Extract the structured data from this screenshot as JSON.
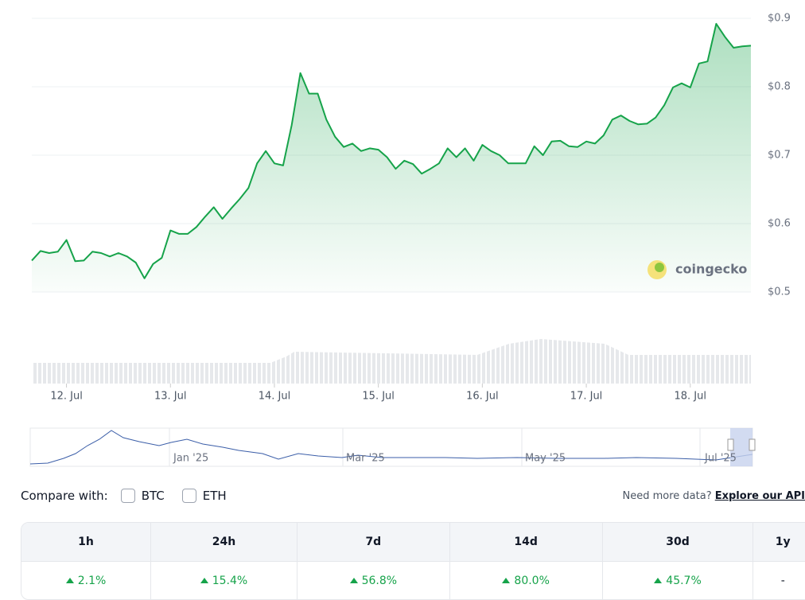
{
  "chart_data": {
    "type": "line",
    "color": "#16a34a",
    "values": [
      0.546,
      0.56,
      0.557,
      0.559,
      0.576,
      0.545,
      0.546,
      0.559,
      0.557,
      0.552,
      0.557,
      0.552,
      0.543,
      0.52,
      0.541,
      0.55,
      0.59,
      0.585,
      0.585,
      0.595,
      0.61,
      0.624,
      0.607,
      0.622,
      0.636,
      0.652,
      0.688,
      0.706,
      0.688,
      0.685,
      0.744,
      0.82,
      0.79,
      0.79,
      0.752,
      0.727,
      0.712,
      0.717,
      0.706,
      0.71,
      0.708,
      0.697,
      0.68,
      0.692,
      0.687,
      0.673,
      0.68,
      0.688,
      0.71,
      0.697,
      0.71,
      0.692,
      0.715,
      0.706,
      0.7,
      0.688,
      0.688,
      0.688,
      0.713,
      0.7,
      0.72,
      0.721,
      0.713,
      0.712,
      0.72,
      0.717,
      0.729,
      0.752,
      0.758,
      0.75,
      0.745,
      0.746,
      0.755,
      0.773,
      0.799,
      0.805,
      0.799,
      0.834,
      0.837,
      0.892,
      0.873,
      0.857,
      0.859,
      0.86
    ],
    "ylim": [
      0.5,
      0.9
    ],
    "yticks": [
      {
        "value": 0.5,
        "label": "$0.5"
      },
      {
        "value": 0.6,
        "label": "$0.6"
      },
      {
        "value": 0.7,
        "label": "$0.7"
      },
      {
        "value": 0.8,
        "label": "$0.8"
      },
      {
        "value": 0.9,
        "label": "$0.9"
      }
    ],
    "xlim": [
      0,
      83
    ],
    "xticks": [
      {
        "value": 4,
        "label": "12. Jul"
      },
      {
        "value": 16,
        "label": "13. Jul"
      },
      {
        "value": 28,
        "label": "14. Jul"
      },
      {
        "value": 40,
        "label": "15. Jul"
      },
      {
        "value": 52,
        "label": "16. Jul"
      },
      {
        "value": 64,
        "label": "17. Jul"
      },
      {
        "value": 76,
        "label": "18. Jul"
      }
    ],
    "grid": true,
    "watermark": "coingecko"
  },
  "navigator": {
    "labels": [
      "Jan '25",
      "Mar '25",
      "May '25",
      "Jul '25"
    ]
  },
  "compare": {
    "label": "Compare with:",
    "options": [
      "BTC",
      "ETH"
    ],
    "more": "Need more data?",
    "link": "Explore our API"
  },
  "table": {
    "headers": [
      "1h",
      "24h",
      "7d",
      "14d",
      "30d",
      "1y"
    ],
    "values": [
      "2.1%",
      "15.4%",
      "56.8%",
      "80.0%",
      "45.7%",
      "-"
    ]
  }
}
